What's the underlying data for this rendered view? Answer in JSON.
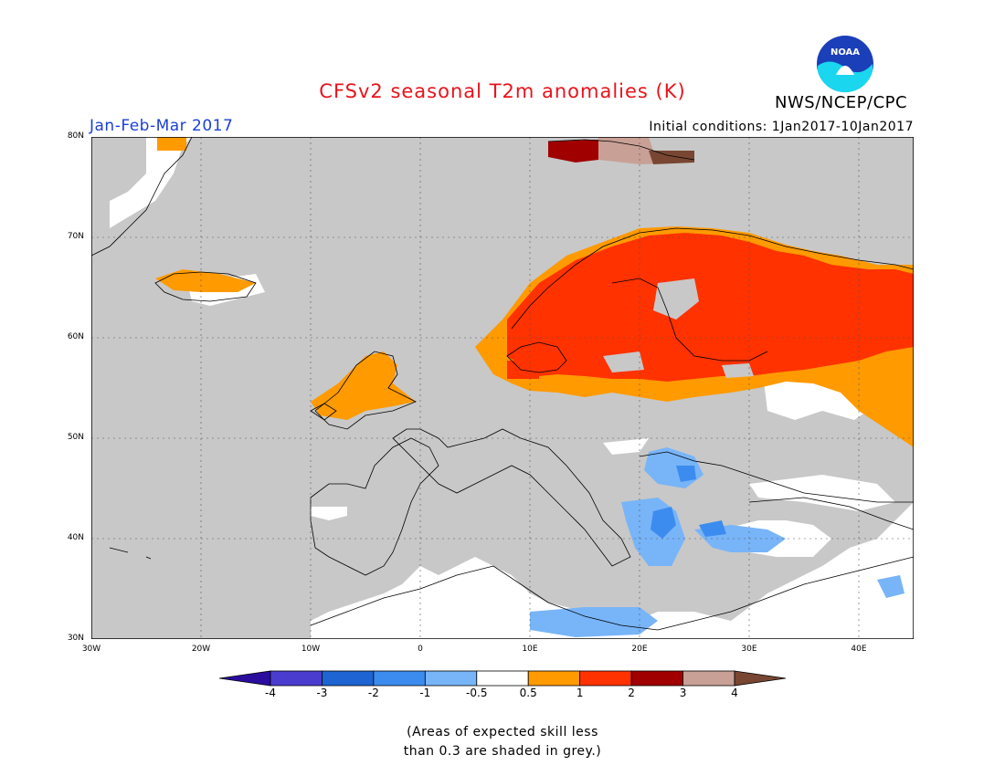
{
  "title": "CFSv2 seasonal T2m anomalies (K)",
  "agency": "NWS/NCEP/CPC",
  "logo_text": "NOAA",
  "period": "Jan-Feb-Mar 2017",
  "initial_conditions": "Initial conditions: 1Jan2017-10Jan2017",
  "map": {
    "lon_range": [
      -30,
      45
    ],
    "lat_range": [
      30,
      80
    ],
    "lat_ticks": [
      "30N",
      "40N",
      "50N",
      "60N",
      "70N",
      "80N"
    ],
    "lon_ticks": [
      "30W",
      "20W",
      "10W",
      "0",
      "10E",
      "20E",
      "30E",
      "40E"
    ],
    "grid": "dotted",
    "masked_color": "#c8c8c8",
    "coastline_color": "#000000",
    "anomaly_regions": [
      {
        "name": "Scandinavia-Finland-Baltic warm",
        "category": "1 to 2",
        "color": "#ff3300"
      },
      {
        "name": "Western Russia warm",
        "category": "0.5 to 1",
        "color": "#ff9900"
      },
      {
        "name": "British Isles warm",
        "category": "0.5 to 1",
        "color": "#ff9900"
      },
      {
        "name": "Svalbard very warm",
        "category": "2 to 4",
        "color": "#a00000"
      },
      {
        "name": "Balkans-Greece cool",
        "category": "-1 to -0.5",
        "color": "#78b4ff"
      },
      {
        "name": "Turkey neutral",
        "category": "-0.5 to 0.5",
        "color": "#ffffff"
      },
      {
        "name": "North Africa neutral",
        "category": "-0.5 to 0.5",
        "color": "#ffffff"
      }
    ]
  },
  "legend": {
    "labels": [
      "-4",
      "-3",
      "-2",
      "-1",
      "-0.5",
      "0.5",
      "1",
      "2",
      "3",
      "4"
    ],
    "colors": [
      "#2b0d9e",
      "#4b3cd0",
      "#1e64d2",
      "#3c8cf0",
      "#78b4f8",
      "#ffffff",
      "#ff9a00",
      "#ff3200",
      "#a00000",
      "#c8a096",
      "#784632"
    ]
  },
  "footnote": {
    "line1": "(Areas of expected skill less",
    "line2": "than 0.3 are shaded in grey.)"
  }
}
